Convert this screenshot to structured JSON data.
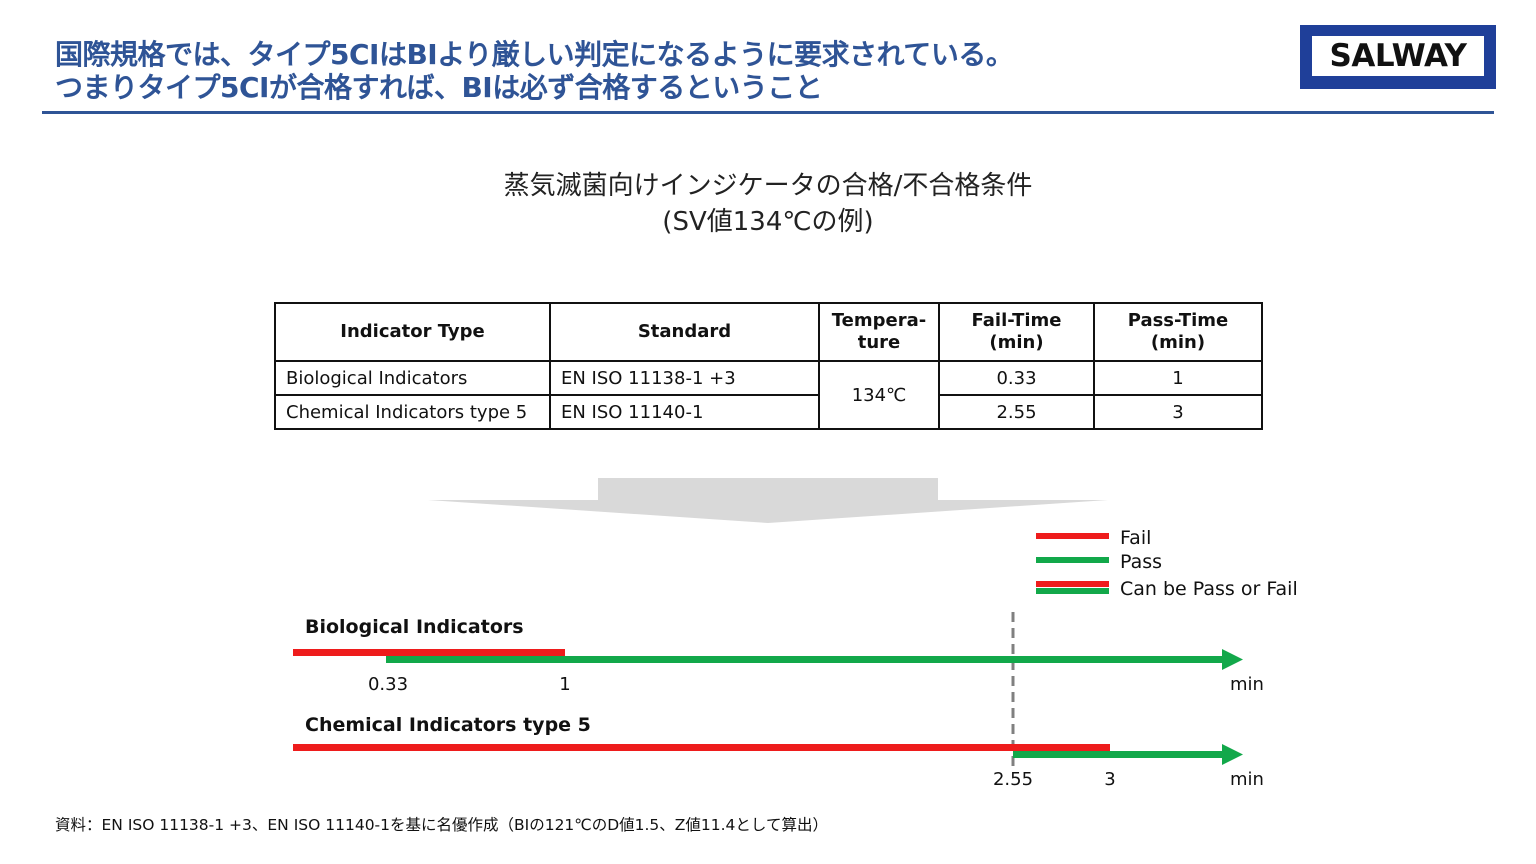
{
  "header": {
    "line1": "国際規格では、タイプ5CIはBIより厳しい判定になるように要求されている。",
    "line2": "つまりタイプ5CIが合格すれば、BIは必ず合格するということ"
  },
  "logo": {
    "text": "SALWAY",
    "color": "#1f3f99"
  },
  "subtitle": {
    "line1": "蒸気滅菌向けインジケータの合格/不合格条件",
    "line2": "(SV値134℃の例)"
  },
  "table": {
    "headers": {
      "type": "Indicator Type",
      "standard": "Standard",
      "temp1": "Tempera-",
      "temp2": "ture",
      "fail1": "Fail-Time",
      "fail2": "(min)",
      "pass1": "Pass-Time",
      "pass2": "(min)"
    },
    "rows": [
      {
        "type": "Biological Indicators",
        "standard": "EN ISO 11138-1 +3",
        "fail": "0.33",
        "pass": "1"
      },
      {
        "type": "Chemical Indicators type 5",
        "standard": "EN ISO 11140-1",
        "fail": "2.55",
        "pass": "3"
      }
    ],
    "temperature": "134℃"
  },
  "legend": {
    "fail": "Fail",
    "pass": "Pass",
    "both": "Can be Pass or Fail"
  },
  "colors": {
    "fail": "#ee1c1c",
    "pass": "#12a84a",
    "arrow": "#d9d9d9",
    "dashed": "#808080"
  },
  "timelines": [
    {
      "title": "Biological Indicators",
      "fail_time": 0.33,
      "pass_time": 1,
      "fail_label": "0.33",
      "pass_label": "1",
      "unit": "min"
    },
    {
      "title": "Chemical Indicators type 5",
      "fail_time": 2.55,
      "pass_time": 3,
      "fail_label": "2.55",
      "pass_label": "3",
      "unit": "min"
    }
  ],
  "source": "資料：EN ISO 11138-1 +3、EN ISO 11140-1を基に名優作成（BIの121℃のD値1.5、Z値11.4として算出）"
}
